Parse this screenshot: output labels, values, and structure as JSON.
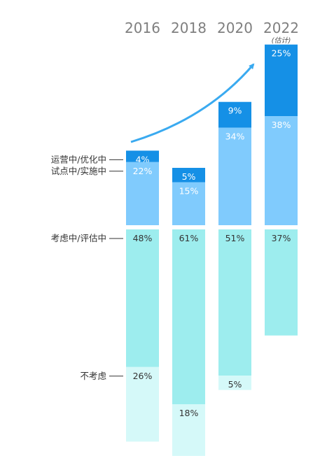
{
  "chart_data": {
    "type": "bar",
    "stacked": true,
    "categories": [
      "2016",
      "2018",
      "2020",
      "2022"
    ],
    "category_notes": {
      "2022": "(估计)"
    },
    "series": [
      {
        "name": "运营中/优化中",
        "values": [
          4,
          5,
          9,
          25
        ],
        "labels": [
          "4%",
          "5%",
          "9%",
          "25%"
        ],
        "color": "#1590e6",
        "label_color": "#ffffff"
      },
      {
        "name": "试点中/实施中",
        "values": [
          22,
          15,
          34,
          38
        ],
        "labels": [
          "22%",
          "15%",
          "34%",
          "38%"
        ],
        "color": "#80cbfd",
        "label_color": "#ffffff"
      },
      {
        "name": "考虑中/评估中",
        "values": [
          48,
          61,
          51,
          37
        ],
        "labels": [
          "48%",
          "61%",
          "51%",
          "37%"
        ],
        "color": "#9dedee",
        "label_color": "#333333"
      },
      {
        "name": "不考虑",
        "values": [
          26,
          18,
          5,
          0
        ],
        "labels": [
          "26%",
          "18%",
          "5%",
          ""
        ],
        "color": "#d5f9f9",
        "label_color": "#333333"
      }
    ],
    "unit": "%",
    "trend_arrow": true,
    "arrow_color": "#3aaaf0"
  }
}
